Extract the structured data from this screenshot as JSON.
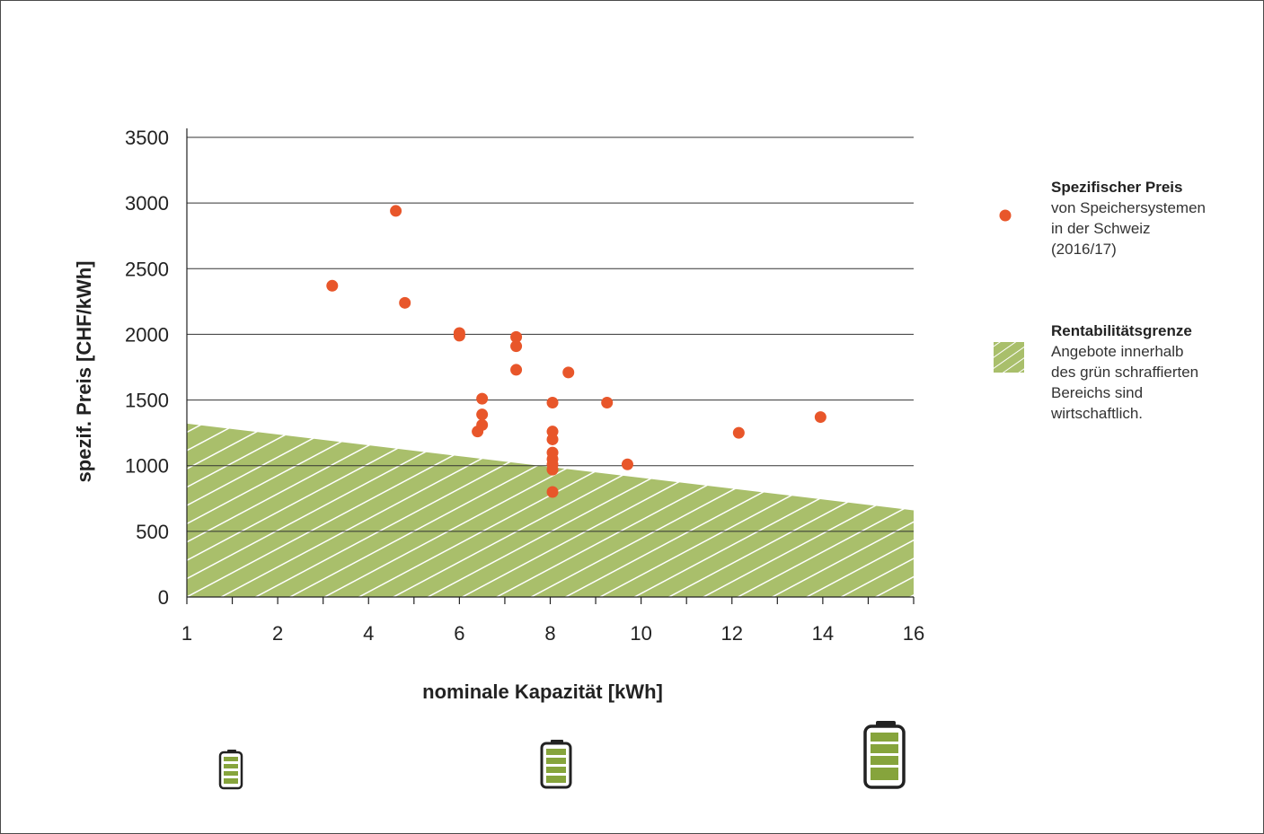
{
  "chart_data": {
    "type": "scatter",
    "xlabel": "nominale Kapazität [kWh]",
    "ylabel": "spezif. Preis [CHF/kWh]",
    "x_ticks": [
      "1",
      "2",
      "4",
      "6",
      "8",
      "10",
      "12",
      "14",
      "16"
    ],
    "y_ticks": [
      "0",
      "500",
      "1000",
      "1500",
      "2000",
      "2500",
      "3000",
      "3500"
    ],
    "ylim": [
      0,
      3500
    ],
    "grid": true,
    "legend_position": "right",
    "series": [
      {
        "name": "Spezifischer Preis",
        "color": "#e8562a",
        "points": [
          {
            "x": 3.2,
            "y": 2370
          },
          {
            "x": 4.6,
            "y": 2940
          },
          {
            "x": 4.8,
            "y": 2240
          },
          {
            "x": 6.0,
            "y": 2010
          },
          {
            "x": 6.0,
            "y": 1990
          },
          {
            "x": 6.4,
            "y": 1260
          },
          {
            "x": 6.5,
            "y": 1510
          },
          {
            "x": 6.5,
            "y": 1390
          },
          {
            "x": 6.5,
            "y": 1310
          },
          {
            "x": 7.25,
            "y": 1980
          },
          {
            "x": 7.25,
            "y": 1910
          },
          {
            "x": 7.25,
            "y": 1730
          },
          {
            "x": 8.05,
            "y": 1480
          },
          {
            "x": 8.05,
            "y": 1260
          },
          {
            "x": 8.05,
            "y": 1200
          },
          {
            "x": 8.05,
            "y": 1100
          },
          {
            "x": 8.05,
            "y": 1050
          },
          {
            "x": 8.05,
            "y": 1010
          },
          {
            "x": 8.05,
            "y": 970
          },
          {
            "x": 8.05,
            "y": 800
          },
          {
            "x": 8.4,
            "y": 1710
          },
          {
            "x": 9.25,
            "y": 1480
          },
          {
            "x": 9.7,
            "y": 1010
          },
          {
            "x": 12.15,
            "y": 1250
          },
          {
            "x": 13.95,
            "y": 1370
          }
        ]
      }
    ],
    "area": {
      "name": "Rentabilitätsgrenze",
      "color": "#a9bf6b",
      "boundary_y_at_x_start": 1320,
      "boundary_y_at_x_end": 660
    }
  },
  "legend": {
    "items": [
      {
        "title": "Spezifischer Preis",
        "lines": [
          "von Speichersystemen",
          "in der Schweiz",
          "(2016/17)"
        ]
      },
      {
        "title": "Rentabilitätsgrenze",
        "lines": [
          "Angebote innerhalb",
          "des grün schraffierten",
          "Bereichs sind",
          "wirtschaftlich."
        ]
      }
    ]
  },
  "icons": [
    "battery-small-icon",
    "battery-medium-icon",
    "battery-large-icon"
  ]
}
